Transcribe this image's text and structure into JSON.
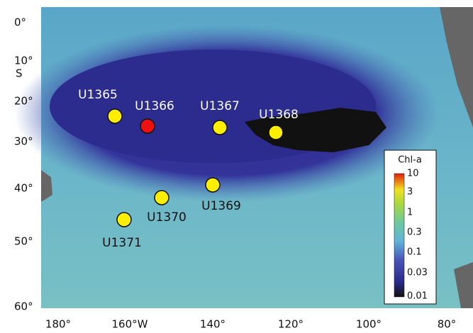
{
  "lat_labels": [
    "0°",
    "10°",
    "S",
    "20°",
    "30°",
    "40°",
    "50°",
    "60°"
  ],
  "lon_labels": [
    "180°",
    "160°W",
    "140°",
    "120°",
    "100°",
    "80°"
  ],
  "sites": [
    "U1365",
    "U1366",
    "U1367",
    "U1368",
    "U1369",
    "U1370",
    "U1371"
  ],
  "colorbar": {
    "title": "Chl-a",
    "labels": [
      "10",
      "3",
      "1",
      "0.3",
      "0.1",
      "0.03",
      "0.01"
    ]
  }
}
